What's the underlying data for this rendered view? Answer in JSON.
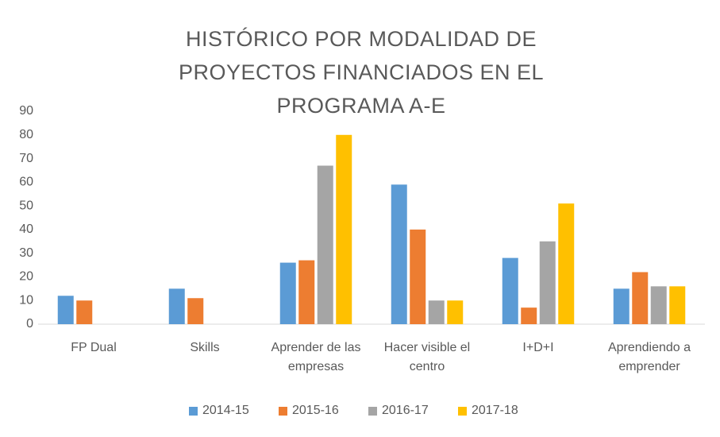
{
  "chart_data": {
    "type": "bar",
    "title": "HISTÓRICO POR MODALIDAD DE PROYECTOS FINANCIADOS EN EL PROGRAMA A-E",
    "categories": [
      "FP Dual",
      "Skills",
      "Aprender de las empresas",
      "Hacer visible el centro",
      "I+D+I",
      "Aprendiendo a emprender"
    ],
    "series": [
      {
        "name": "2014-15",
        "color": "#5b9bd5",
        "values": [
          12,
          15,
          26,
          59,
          28,
          15
        ]
      },
      {
        "name": "2015-16",
        "color": "#ed7d31",
        "values": [
          10,
          11,
          27,
          40,
          7,
          22
        ]
      },
      {
        "name": "2016-17",
        "color": "#a5a5a5",
        "values": [
          null,
          null,
          67,
          10,
          35,
          16
        ]
      },
      {
        "name": "2017-18",
        "color": "#ffc000",
        "values": [
          null,
          null,
          80,
          10,
          51,
          16
        ]
      }
    ],
    "ylim": [
      0,
      90
    ],
    "yticks": [
      0,
      10,
      20,
      30,
      40,
      50,
      60,
      70,
      80,
      90
    ],
    "grid": false,
    "legend": "bottom"
  }
}
